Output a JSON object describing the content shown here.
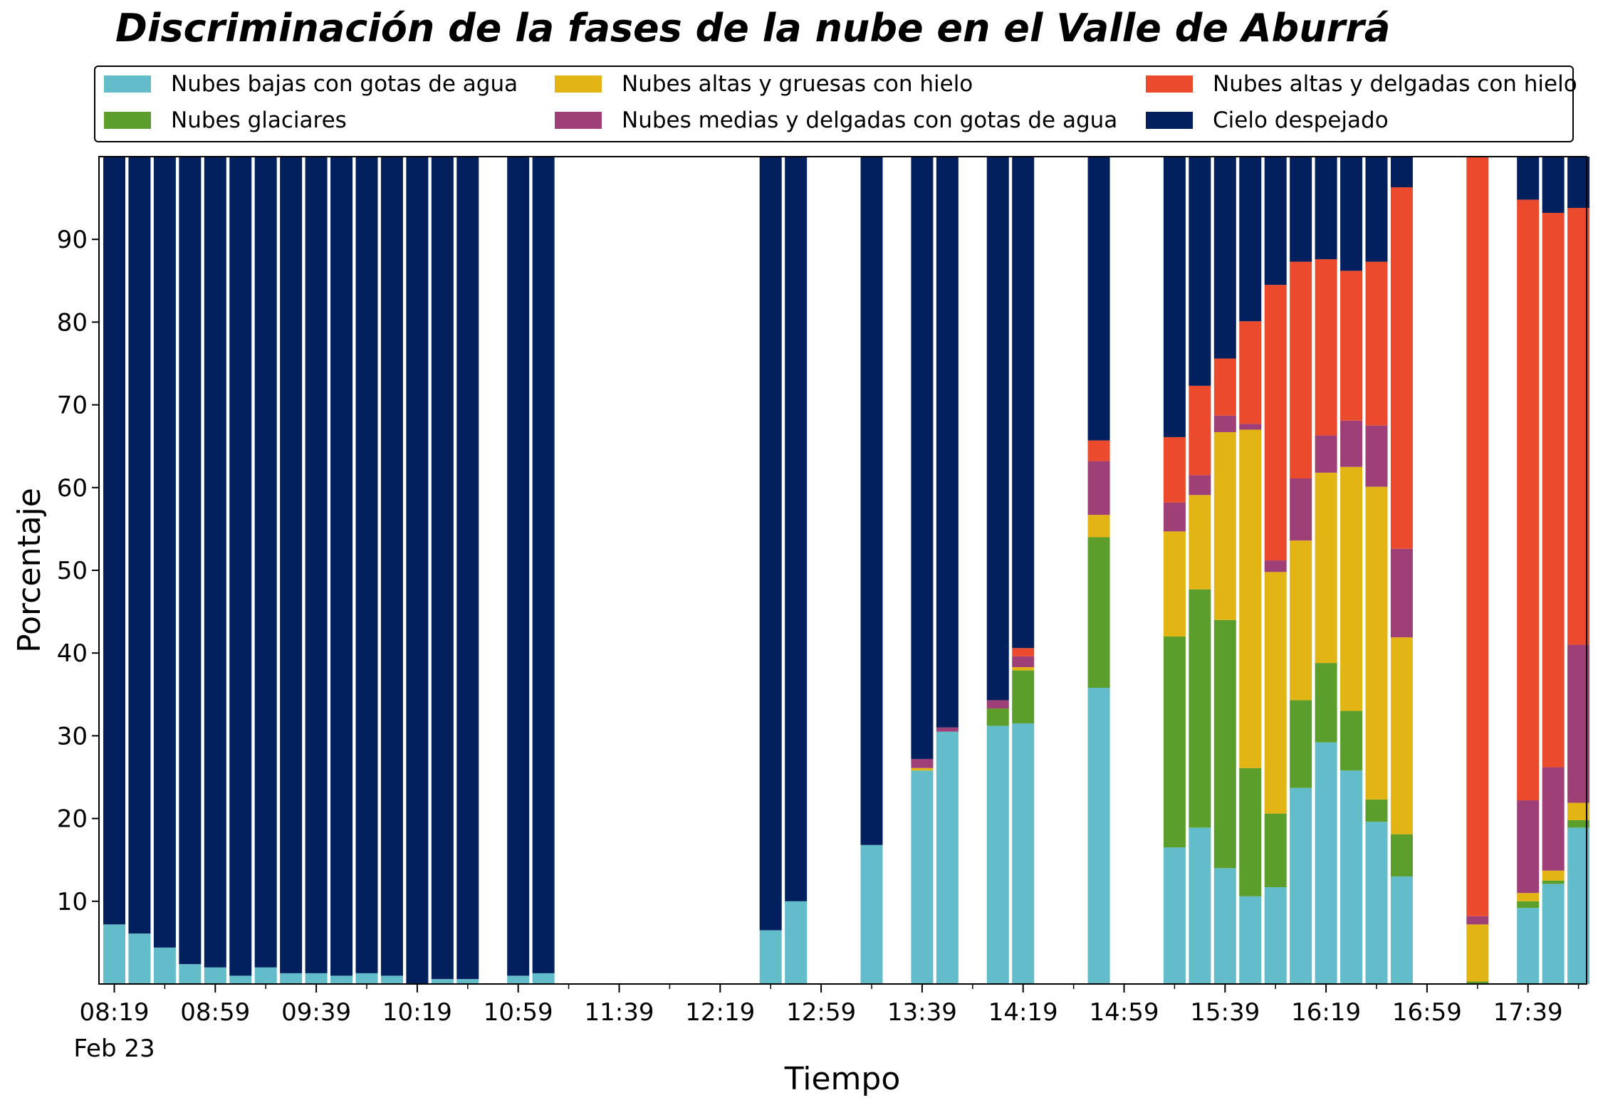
{
  "chart_data": {
    "type": "bar",
    "stacked": true,
    "title": "Discriminación de la fases de la nube en el Valle de Aburrá",
    "xlabel": "Tiempo",
    "ylabel": "Porcentaje",
    "ylim": [
      0,
      100
    ],
    "yticks": [
      10,
      20,
      30,
      40,
      50,
      60,
      70,
      80,
      90
    ],
    "xtick_labels": [
      "08:19",
      "08:59",
      "09:39",
      "10:19",
      "10:59",
      "11:39",
      "12:19",
      "12:59",
      "13:39",
      "14:19",
      "14:59",
      "15:39",
      "16:19",
      "16:59",
      "17:39"
    ],
    "xtick_date": "Feb 23",
    "grid": false,
    "legend_position": "top",
    "slot_count": 59,
    "series": [
      {
        "name": "Nubes bajas con gotas de agua",
        "color": "#63BCC9"
      },
      {
        "name": "Nubes glaciares",
        "color": "#5B9E2C"
      },
      {
        "name": "Nubes altas y gruesas con hielo",
        "color": "#E3B514"
      },
      {
        "name": "Nubes medias y delgadas con gotas de agua",
        "color": "#9E4077"
      },
      {
        "name": "Nubes altas y delgadas con hielo",
        "color": "#EC4A2C"
      },
      {
        "name": "Cielo despejado",
        "color": "#03205E"
      }
    ],
    "bars": [
      {
        "slot": 0,
        "values": [
          7.2,
          0,
          0,
          0,
          0,
          92.8
        ]
      },
      {
        "slot": 1,
        "values": [
          6.1,
          0,
          0,
          0,
          0,
          93.9
        ]
      },
      {
        "slot": 2,
        "values": [
          4.4,
          0,
          0,
          0,
          0,
          95.6
        ]
      },
      {
        "slot": 3,
        "values": [
          2.4,
          0,
          0,
          0,
          0,
          97.6
        ]
      },
      {
        "slot": 4,
        "values": [
          2.0,
          0,
          0,
          0,
          0,
          98.0
        ]
      },
      {
        "slot": 5,
        "values": [
          1.0,
          0,
          0,
          0,
          0,
          99.0
        ]
      },
      {
        "slot": 6,
        "values": [
          2.0,
          0,
          0,
          0,
          0,
          98.0
        ]
      },
      {
        "slot": 7,
        "values": [
          1.3,
          0,
          0,
          0,
          0,
          98.7
        ]
      },
      {
        "slot": 8,
        "values": [
          1.3,
          0,
          0,
          0,
          0,
          98.7
        ]
      },
      {
        "slot": 9,
        "values": [
          1.0,
          0,
          0,
          0,
          0,
          99.0
        ]
      },
      {
        "slot": 10,
        "values": [
          1.3,
          0,
          0,
          0,
          0,
          98.7
        ]
      },
      {
        "slot": 11,
        "values": [
          1.0,
          0,
          0,
          0,
          0,
          99.0
        ]
      },
      {
        "slot": 12,
        "values": [
          0,
          0,
          0,
          0,
          0,
          100
        ]
      },
      {
        "slot": 13,
        "values": [
          0.6,
          0,
          0,
          0,
          0,
          99.4
        ]
      },
      {
        "slot": 14,
        "values": [
          0.6,
          0,
          0,
          0,
          0,
          99.4
        ]
      },
      {
        "slot": 16,
        "values": [
          1.0,
          0,
          0,
          0,
          0,
          99.0
        ]
      },
      {
        "slot": 17,
        "values": [
          1.3,
          0,
          0,
          0,
          0,
          98.7
        ]
      },
      {
        "slot": 26,
        "values": [
          6.5,
          0,
          0,
          0,
          0,
          93.5
        ]
      },
      {
        "slot": 27,
        "values": [
          10.0,
          0,
          0,
          0,
          0,
          90.0
        ]
      },
      {
        "slot": 30,
        "values": [
          16.8,
          0,
          0,
          0,
          0,
          83.2
        ]
      },
      {
        "slot": 32,
        "values": [
          25.8,
          0,
          0.3,
          1.1,
          0,
          72.8
        ]
      },
      {
        "slot": 33,
        "values": [
          30.5,
          0,
          0,
          0.5,
          0,
          69.0
        ]
      },
      {
        "slot": 35,
        "values": [
          31.2,
          2.1,
          0,
          1.0,
          0,
          65.7
        ]
      },
      {
        "slot": 36,
        "values": [
          31.5,
          6.4,
          0.4,
          1.3,
          1.0,
          59.4
        ]
      },
      {
        "slot": 39,
        "values": [
          35.8,
          18.2,
          2.7,
          6.5,
          2.5,
          34.3
        ]
      },
      {
        "slot": 42,
        "values": [
          16.5,
          25.5,
          12.7,
          3.5,
          7.9,
          33.9
        ]
      },
      {
        "slot": 43,
        "values": [
          18.9,
          28.8,
          11.4,
          2.4,
          10.8,
          27.7
        ]
      },
      {
        "slot": 44,
        "values": [
          14.0,
          30.0,
          22.7,
          2.0,
          6.9,
          24.4
        ]
      },
      {
        "slot": 45,
        "values": [
          10.6,
          15.5,
          40.9,
          0.7,
          12.4,
          19.9
        ]
      },
      {
        "slot": 46,
        "values": [
          11.7,
          8.9,
          29.2,
          1.4,
          33.3,
          15.5
        ]
      },
      {
        "slot": 47,
        "values": [
          23.7,
          10.6,
          19.3,
          7.5,
          26.2,
          12.7
        ]
      },
      {
        "slot": 48,
        "values": [
          29.2,
          9.6,
          23.0,
          4.5,
          21.3,
          12.4
        ]
      },
      {
        "slot": 49,
        "values": [
          25.8,
          7.2,
          29.5,
          5.6,
          18.1,
          13.8
        ]
      },
      {
        "slot": 50,
        "values": [
          19.6,
          2.7,
          37.8,
          7.4,
          19.8,
          12.7
        ]
      },
      {
        "slot": 51,
        "values": [
          13.0,
          5.1,
          23.8,
          10.7,
          43.7,
          3.7
        ]
      },
      {
        "slot": 54,
        "values": [
          0,
          0.3,
          6.9,
          1.0,
          91.8,
          0
        ]
      },
      {
        "slot": 56,
        "values": [
          9.2,
          0.8,
          1.0,
          11.2,
          72.6,
          5.2
        ]
      },
      {
        "slot": 57,
        "values": [
          12.1,
          0.4,
          1.2,
          12.5,
          67.0,
          6.8
        ]
      },
      {
        "slot": 58,
        "values": [
          18.9,
          0.9,
          2.1,
          19.1,
          52.8,
          6.2
        ]
      }
    ]
  }
}
